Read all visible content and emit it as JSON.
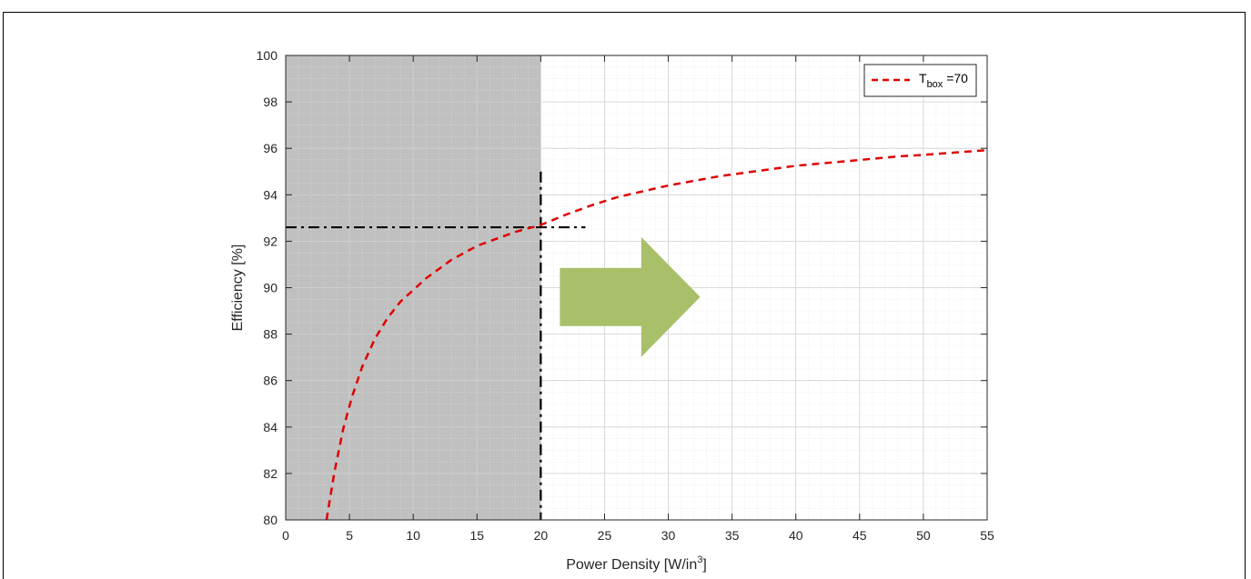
{
  "chart_data": {
    "type": "line",
    "xlabel": "Power Density [W/in",
    "xlabel_sup": "3",
    "xlabel_end": "]",
    "ylabel": "Efficiency [%]",
    "xlim": [
      0,
      55
    ],
    "ylim": [
      80,
      100
    ],
    "xticks": [
      "0",
      "5",
      "10",
      "15",
      "20",
      "25",
      "30",
      "35",
      "40",
      "45",
      "50",
      "55"
    ],
    "yticks": [
      "80",
      "82",
      "84",
      "86",
      "88",
      "90",
      "92",
      "94",
      "96",
      "98",
      "100"
    ],
    "grid": true,
    "minor_grid": true,
    "legend_position": "top-right",
    "series": [
      {
        "name_main": "T",
        "name_sub": "box",
        "name_value": " =70",
        "color": "#e00000",
        "style": "dashed",
        "x": [
          3.2,
          3.8,
          4.5,
          5.2,
          6,
          7,
          8,
          9,
          10,
          11,
          12,
          13,
          14,
          15,
          16,
          17,
          18,
          19,
          20,
          22,
          24,
          26,
          28,
          30,
          32,
          34,
          36,
          38,
          40,
          42,
          44,
          46,
          48,
          50,
          52,
          55
        ],
        "y": [
          80.0,
          82.0,
          83.9,
          85.3,
          86.6,
          87.8,
          88.7,
          89.4,
          89.9,
          90.4,
          90.8,
          91.2,
          91.5,
          91.8,
          92.0,
          92.2,
          92.4,
          92.55,
          92.7,
          93.15,
          93.55,
          93.9,
          94.15,
          94.4,
          94.6,
          94.8,
          94.95,
          95.1,
          95.25,
          95.35,
          95.45,
          95.55,
          95.65,
          95.72,
          95.8,
          95.92
        ]
      }
    ],
    "shaded_region": {
      "x_from": 0,
      "x_to": 20,
      "color": "#c0c0c0"
    },
    "reference_lines": {
      "horizontal": {
        "y": 92.6,
        "x_from": 0,
        "x_to": 23.5
      },
      "vertical": {
        "x": 20,
        "y_from": 80,
        "y_to": 95
      }
    },
    "arrow": {
      "color": "#a9c06a",
      "direction": "right",
      "x_from": 21.5,
      "x_to": 32.5,
      "y_center": 89.6
    }
  }
}
